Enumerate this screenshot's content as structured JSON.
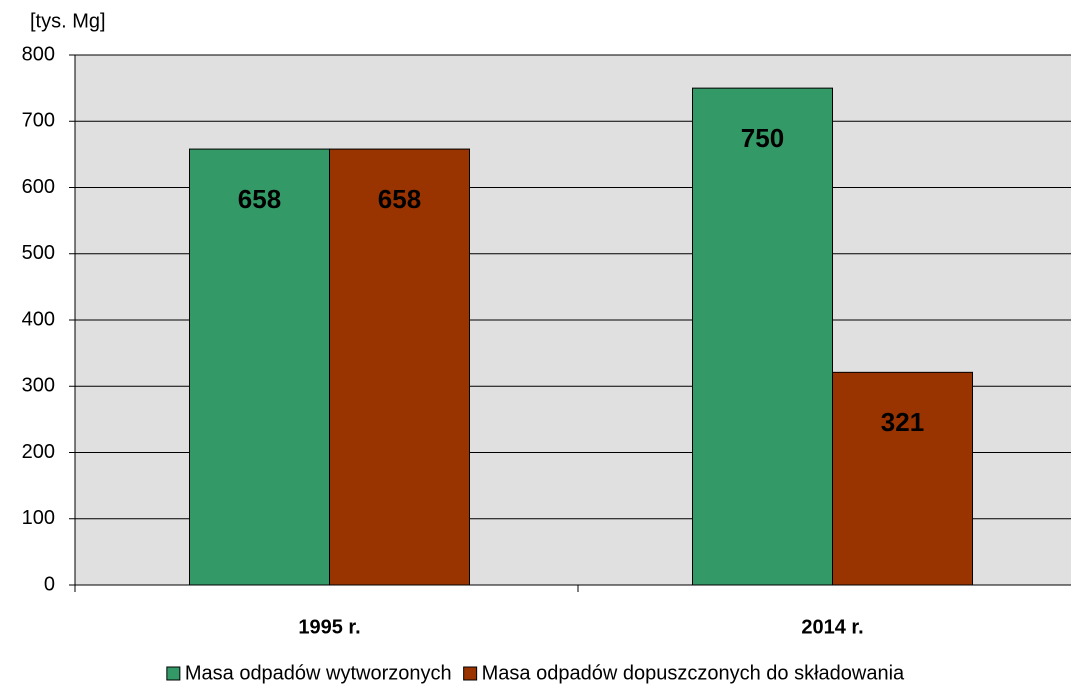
{
  "chart_data": {
    "type": "bar",
    "y_label": "[tys. Mg]",
    "categories": [
      "1995 r.",
      "2014 r."
    ],
    "series": [
      {
        "name": "Masa odpadów wytworzonych",
        "color": "#339966",
        "values": [
          658,
          750
        ]
      },
      {
        "name": "Masa odpadów dopuszczonych do składowania",
        "color": "#993300",
        "values": [
          658,
          321
        ]
      }
    ],
    "ylim": [
      0,
      800
    ],
    "yticks": [
      0,
      100,
      200,
      300,
      400,
      500,
      600,
      700,
      800
    ],
    "grid": true,
    "plot_background": "#e0e0e0",
    "legend": "bottom"
  }
}
